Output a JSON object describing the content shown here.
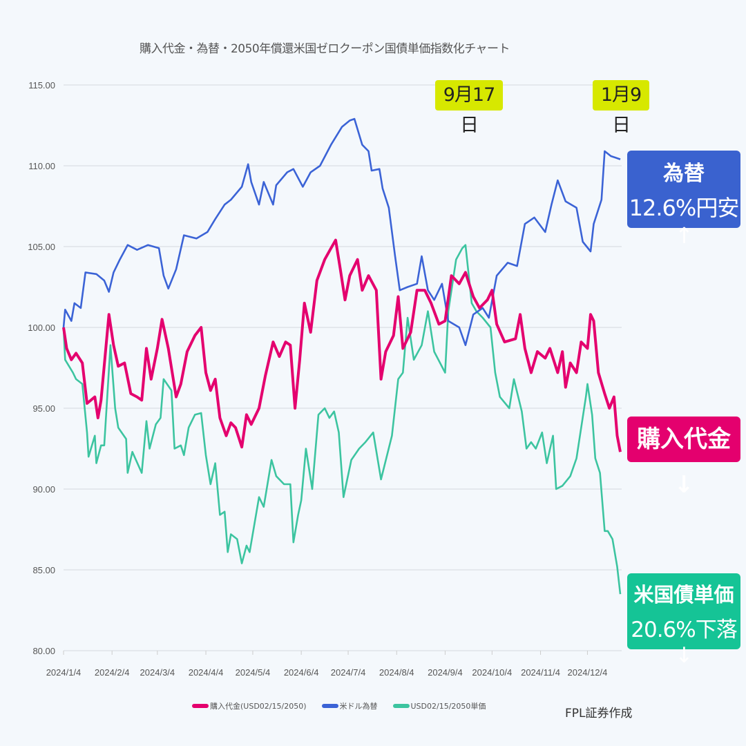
{
  "chart_data": {
    "type": "line",
    "title": "購入代金・為替・2050年償還米国ゼロクーポン国債単価指数化チャート",
    "xlabel": "",
    "ylabel": "",
    "ylim": [
      80,
      115
    ],
    "y_ticks": [
      "80.00",
      "85.00",
      "90.00",
      "95.00",
      "100.00",
      "105.00",
      "110.00",
      "115.00"
    ],
    "x_range": [
      "2024/1/4",
      "2024/12/25"
    ],
    "x_ticks": [
      "2024/1/4",
      "2024/2/4",
      "2024/3/4",
      "2024/4/4",
      "2024/5/4",
      "2024/6/4",
      "2024/7/4",
      "2024/8/4",
      "2024/9/4",
      "2024/10/4",
      "2024/11/4",
      "2024/12/4"
    ],
    "grid": true,
    "legend_position": "bottom",
    "series": [
      {
        "name": "購入代金(USD02/15/2050)",
        "color": "#e4006e",
        "points": [
          [
            "1/4",
            100.0
          ],
          [
            "1/6",
            98.7
          ],
          [
            "1/9",
            98.0
          ],
          [
            "1/12",
            98.4
          ],
          [
            "1/16",
            97.8
          ],
          [
            "1/19",
            95.3
          ],
          [
            "1/24",
            95.7
          ],
          [
            "1/26",
            94.4
          ],
          [
            "1/28",
            95.5
          ],
          [
            "2/2",
            100.8
          ],
          [
            "2/5",
            98.9
          ],
          [
            "2/8",
            97.6
          ],
          [
            "2/12",
            97.8
          ],
          [
            "2/16",
            95.9
          ],
          [
            "2/20",
            95.7
          ],
          [
            "2/23",
            95.5
          ],
          [
            "2/26",
            98.7
          ],
          [
            "2/29",
            96.8
          ],
          [
            "3/4",
            98.7
          ],
          [
            "3/7",
            100.5
          ],
          [
            "3/11",
            98.7
          ],
          [
            "3/16",
            95.7
          ],
          [
            "3/19",
            96.5
          ],
          [
            "3/23",
            98.5
          ],
          [
            "3/28",
            99.5
          ],
          [
            "4/1",
            100.0
          ],
          [
            "4/4",
            97.2
          ],
          [
            "4/7",
            96.1
          ],
          [
            "4/10",
            96.8
          ],
          [
            "4/13",
            94.4
          ],
          [
            "4/17",
            93.3
          ],
          [
            "4/20",
            94.1
          ],
          [
            "4/23",
            93.8
          ],
          [
            "4/27",
            92.6
          ],
          [
            "4/30",
            94.6
          ],
          [
            "5/3",
            94.0
          ],
          [
            "5/8",
            95.0
          ],
          [
            "5/12",
            97.0
          ],
          [
            "5/17",
            99.1
          ],
          [
            "5/21",
            98.2
          ],
          [
            "5/25",
            99.1
          ],
          [
            "5/28",
            98.9
          ],
          [
            "5/31",
            95.0
          ],
          [
            "6/3",
            98.0
          ],
          [
            "6/6",
            101.5
          ],
          [
            "6/10",
            99.7
          ],
          [
            "6/14",
            102.9
          ],
          [
            "6/19",
            104.2
          ],
          [
            "6/23",
            104.9
          ],
          [
            "6/26",
            105.4
          ],
          [
            "6/29",
            103.6
          ],
          [
            "7/2",
            101.7
          ],
          [
            "7/5",
            103.2
          ],
          [
            "7/10",
            104.2
          ],
          [
            "7/13",
            102.3
          ],
          [
            "7/17",
            103.2
          ],
          [
            "7/22",
            102.3
          ],
          [
            "7/25",
            96.8
          ],
          [
            "7/28",
            98.5
          ],
          [
            "8/2",
            99.5
          ],
          [
            "8/5",
            101.9
          ],
          [
            "8/8",
            98.7
          ],
          [
            "8/13",
            99.7
          ],
          [
            "8/17",
            102.3
          ],
          [
            "8/22",
            102.3
          ],
          [
            "8/26",
            101.5
          ],
          [
            "8/31",
            100.2
          ],
          [
            "9/4",
            100.4
          ],
          [
            "9/8",
            103.2
          ],
          [
            "9/13",
            102.7
          ],
          [
            "9/17",
            103.4
          ],
          [
            "9/22",
            101.9
          ],
          [
            "9/26",
            101.2
          ],
          [
            "10/1",
            101.7
          ],
          [
            "10/4",
            102.3
          ],
          [
            "10/7",
            100.2
          ],
          [
            "10/12",
            99.1
          ],
          [
            "10/19",
            99.3
          ],
          [
            "10/22",
            100.8
          ],
          [
            "10/25",
            98.7
          ],
          [
            "10/29",
            97.2
          ],
          [
            "11/2",
            98.5
          ],
          [
            "11/7",
            98.1
          ],
          [
            "11/10",
            98.7
          ],
          [
            "11/15",
            97.2
          ],
          [
            "11/18",
            98.5
          ],
          [
            "11/20",
            96.3
          ],
          [
            "11/23",
            97.8
          ],
          [
            "11/27",
            97.2
          ],
          [
            "11/30",
            99.1
          ],
          [
            "12/4",
            98.7
          ],
          [
            "12/6",
            100.8
          ],
          [
            "12/8",
            100.4
          ],
          [
            "12/11",
            97.2
          ],
          [
            "12/15",
            95.9
          ],
          [
            "12/18",
            95.0
          ],
          [
            "12/21",
            95.7
          ],
          [
            "12/23",
            93.3
          ],
          [
            "12/25",
            92.3
          ]
        ]
      },
      {
        "name": "米ドル為替",
        "color": "#3b63d6",
        "points": [
          [
            "1/4",
            100.0
          ],
          [
            "1/5",
            101.1
          ],
          [
            "1/9",
            100.4
          ],
          [
            "1/11",
            101.5
          ],
          [
            "1/15",
            101.2
          ],
          [
            "1/18",
            103.4
          ],
          [
            "1/25",
            103.3
          ],
          [
            "1/30",
            102.9
          ],
          [
            "2/2",
            102.2
          ],
          [
            "2/5",
            103.4
          ],
          [
            "2/9",
            104.2
          ],
          [
            "2/14",
            105.1
          ],
          [
            "2/20",
            104.8
          ],
          [
            "2/27",
            105.1
          ],
          [
            "3/5",
            104.9
          ],
          [
            "3/8",
            103.2
          ],
          [
            "3/11",
            102.4
          ],
          [
            "3/16",
            103.6
          ],
          [
            "3/21",
            105.7
          ],
          [
            "3/29",
            105.5
          ],
          [
            "4/5",
            105.9
          ],
          [
            "4/10",
            106.7
          ],
          [
            "4/16",
            107.6
          ],
          [
            "4/20",
            107.9
          ],
          [
            "4/27",
            108.7
          ],
          [
            "5/1",
            110.1
          ],
          [
            "5/3",
            109.0
          ],
          [
            "5/8",
            107.6
          ],
          [
            "5/11",
            109.0
          ],
          [
            "5/17",
            107.6
          ],
          [
            "5/19",
            108.8
          ],
          [
            "5/26",
            109.6
          ],
          [
            "5/30",
            109.8
          ],
          [
            "6/5",
            108.7
          ],
          [
            "6/10",
            109.6
          ],
          [
            "6/16",
            110.0
          ],
          [
            "6/23",
            111.3
          ],
          [
            "6/30",
            112.4
          ],
          [
            "7/5",
            112.8
          ],
          [
            "7/8",
            112.9
          ],
          [
            "7/13",
            111.3
          ],
          [
            "7/17",
            110.9
          ],
          [
            "7/19",
            109.7
          ],
          [
            "7/24",
            109.8
          ],
          [
            "7/26",
            108.6
          ],
          [
            "7/30",
            107.4
          ],
          [
            "8/3",
            104.4
          ],
          [
            "8/6",
            102.3
          ],
          [
            "8/11",
            102.5
          ],
          [
            "8/17",
            102.7
          ],
          [
            "8/20",
            104.4
          ],
          [
            "8/24",
            102.3
          ],
          [
            "8/28",
            101.7
          ],
          [
            "9/2",
            102.7
          ],
          [
            "9/6",
            100.4
          ],
          [
            "9/13",
            100.0
          ],
          [
            "9/17",
            98.9
          ],
          [
            "9/22",
            100.8
          ],
          [
            "9/28",
            101.2
          ],
          [
            "10/2",
            100.6
          ],
          [
            "10/7",
            103.2
          ],
          [
            "10/14",
            104.0
          ],
          [
            "10/20",
            103.8
          ],
          [
            "10/25",
            106.4
          ],
          [
            "10/31",
            106.8
          ],
          [
            "11/7",
            105.9
          ],
          [
            "11/11",
            107.6
          ],
          [
            "11/15",
            109.1
          ],
          [
            "11/20",
            107.8
          ],
          [
            "11/27",
            107.4
          ],
          [
            "12/1",
            105.3
          ],
          [
            "12/6",
            104.7
          ],
          [
            "12/8",
            106.4
          ],
          [
            "12/13",
            107.9
          ],
          [
            "12/15",
            110.9
          ],
          [
            "12/19",
            110.6
          ],
          [
            "12/25",
            110.4
          ]
        ]
      },
      {
        "name": "USD02/15/2050単価",
        "color": "#3cc4a0",
        "points": [
          [
            "1/4",
            100.0
          ],
          [
            "1/5",
            98.0
          ],
          [
            "1/10",
            97.2
          ],
          [
            "1/12",
            96.8
          ],
          [
            "1/16",
            96.5
          ],
          [
            "1/19",
            93.5
          ],
          [
            "1/20",
            92.0
          ],
          [
            "1/24",
            93.3
          ],
          [
            "1/25",
            91.6
          ],
          [
            "1/28",
            92.7
          ],
          [
            "1/30",
            92.7
          ],
          [
            "2/3",
            98.9
          ],
          [
            "2/6",
            95.0
          ],
          [
            "2/8",
            93.8
          ],
          [
            "2/13",
            93.1
          ],
          [
            "2/14",
            91.0
          ],
          [
            "2/17",
            92.3
          ],
          [
            "2/23",
            91.0
          ],
          [
            "2/26",
            94.2
          ],
          [
            "2/28",
            92.5
          ],
          [
            "3/3",
            94.0
          ],
          [
            "3/6",
            94.4
          ],
          [
            "3/8",
            96.8
          ],
          [
            "3/13",
            96.1
          ],
          [
            "3/15",
            92.5
          ],
          [
            "3/19",
            92.7
          ],
          [
            "3/21",
            92.1
          ],
          [
            "3/24",
            93.8
          ],
          [
            "3/28",
            94.6
          ],
          [
            "4/1",
            94.7
          ],
          [
            "4/4",
            92.1
          ],
          [
            "4/7",
            90.3
          ],
          [
            "4/10",
            91.6
          ],
          [
            "4/13",
            88.4
          ],
          [
            "4/16",
            88.6
          ],
          [
            "4/18",
            86.1
          ],
          [
            "4/20",
            87.2
          ],
          [
            "4/24",
            86.9
          ],
          [
            "4/27",
            85.4
          ],
          [
            "4/30",
            86.5
          ],
          [
            "5/2",
            86.1
          ],
          [
            "5/8",
            89.5
          ],
          [
            "5/11",
            88.9
          ],
          [
            "5/16",
            91.8
          ],
          [
            "5/19",
            90.8
          ],
          [
            "5/24",
            90.3
          ],
          [
            "5/28",
            90.3
          ],
          [
            "5/30",
            86.7
          ],
          [
            "6/2",
            88.4
          ],
          [
            "6/4",
            89.3
          ],
          [
            "6/7",
            92.5
          ],
          [
            "6/11",
            90.0
          ],
          [
            "6/15",
            94.6
          ],
          [
            "6/19",
            95.0
          ],
          [
            "6/22",
            94.4
          ],
          [
            "6/25",
            94.8
          ],
          [
            "6/28",
            93.5
          ],
          [
            "7/1",
            89.5
          ],
          [
            "7/6",
            91.8
          ],
          [
            "7/11",
            92.5
          ],
          [
            "7/15",
            92.9
          ],
          [
            "7/20",
            93.5
          ],
          [
            "7/25",
            90.6
          ],
          [
            "8/1",
            93.3
          ],
          [
            "8/5",
            96.8
          ],
          [
            "8/8",
            97.2
          ],
          [
            "8/11",
            100.6
          ],
          [
            "8/15",
            98.0
          ],
          [
            "8/20",
            98.9
          ],
          [
            "8/24",
            101.0
          ],
          [
            "8/28",
            98.5
          ],
          [
            "9/4",
            97.2
          ],
          [
            "9/6",
            101.0
          ],
          [
            "9/11",
            104.2
          ],
          [
            "9/15",
            104.9
          ],
          [
            "9/17",
            105.1
          ],
          [
            "9/21",
            101.5
          ],
          [
            "9/24",
            101.0
          ],
          [
            "9/28",
            100.6
          ],
          [
            "10/3",
            100.0
          ],
          [
            "10/6",
            97.2
          ],
          [
            "10/9",
            95.7
          ],
          [
            "10/15",
            95.0
          ],
          [
            "10/18",
            96.8
          ],
          [
            "10/23",
            94.8
          ],
          [
            "10/26",
            92.5
          ],
          [
            "10/29",
            92.9
          ],
          [
            "11/1",
            92.5
          ],
          [
            "11/5",
            93.5
          ],
          [
            "11/8",
            91.6
          ],
          [
            "11/12",
            93.3
          ],
          [
            "11/14",
            90.0
          ],
          [
            "11/18",
            90.2
          ],
          [
            "11/23",
            90.8
          ],
          [
            "11/27",
            91.9
          ],
          [
            "11/30",
            93.8
          ],
          [
            "12/3",
            95.7
          ],
          [
            "12/4",
            96.5
          ],
          [
            "12/7",
            94.6
          ],
          [
            "12/9",
            91.9
          ],
          [
            "12/12",
            91.0
          ],
          [
            "12/15",
            87.4
          ],
          [
            "12/17",
            87.4
          ],
          [
            "12/20",
            86.9
          ],
          [
            "12/23",
            85.2
          ],
          [
            "12/25",
            83.5
          ]
        ]
      }
    ],
    "annotations": {
      "date_label_1": "9月17日",
      "date_label_2": "1月9日",
      "fx_box_title": "為替",
      "fx_box_value": "12.6%円安↑",
      "fx_box_color": "#3a62cf",
      "purchase_box": "購入代金↓",
      "purchase_box_color": "#e4006e",
      "bond_box_title": "米国債単価",
      "bond_box_value": "20.6%下落↓",
      "bond_box_color": "#15c496",
      "highlight_color": "#d7e800"
    },
    "credit": "FPL証券作成"
  }
}
